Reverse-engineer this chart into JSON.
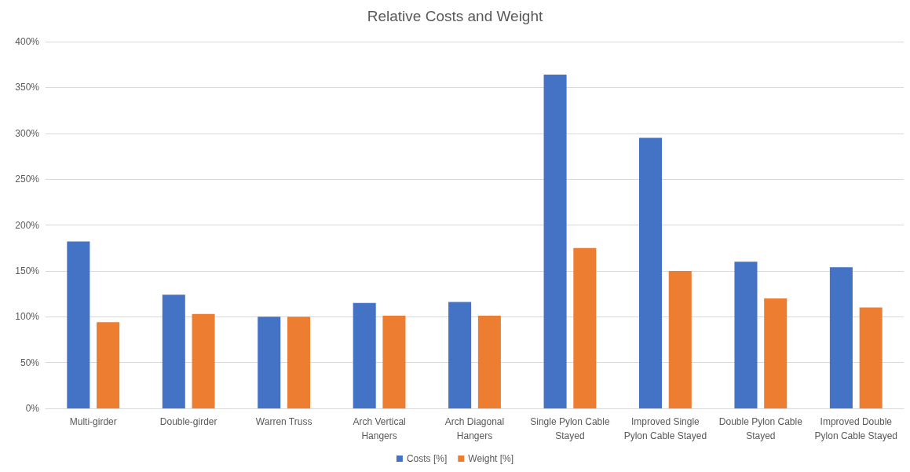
{
  "chart_data": {
    "type": "bar",
    "title": "Relative Costs and Weight",
    "categories": [
      "Multi-girder",
      "Double-girder",
      "Warren Truss",
      "Arch Vertical Hangers",
      "Arch Diagonal Hangers",
      "Single Pylon Cable Stayed",
      "Improved Single Pylon Cable Stayed",
      "Double Pylon Cable Stayed",
      "Improved Double Pylon Cable Stayed"
    ],
    "series": [
      {
        "name": "Costs [%]",
        "color": "#4472c4",
        "values": [
          182,
          124,
          100,
          115,
          116,
          364,
          295,
          160,
          154
        ]
      },
      {
        "name": "Weight [%]",
        "color": "#ed7d31",
        "values": [
          94,
          103,
          100,
          101,
          101,
          175,
          150,
          120,
          110
        ]
      }
    ],
    "ylim": [
      0,
      400
    ],
    "yticks": [
      {
        "value": 0,
        "label": "0%"
      },
      {
        "value": 50,
        "label": "50%"
      },
      {
        "value": 100,
        "label": "100%"
      },
      {
        "value": 150,
        "label": "150%"
      },
      {
        "value": 200,
        "label": "200%"
      },
      {
        "value": 250,
        "label": "250%"
      },
      {
        "value": 300,
        "label": "300%"
      },
      {
        "value": 350,
        "label": "350%"
      },
      {
        "value": 400,
        "label": "400%"
      }
    ],
    "grid": "y",
    "legend": "bottom"
  }
}
